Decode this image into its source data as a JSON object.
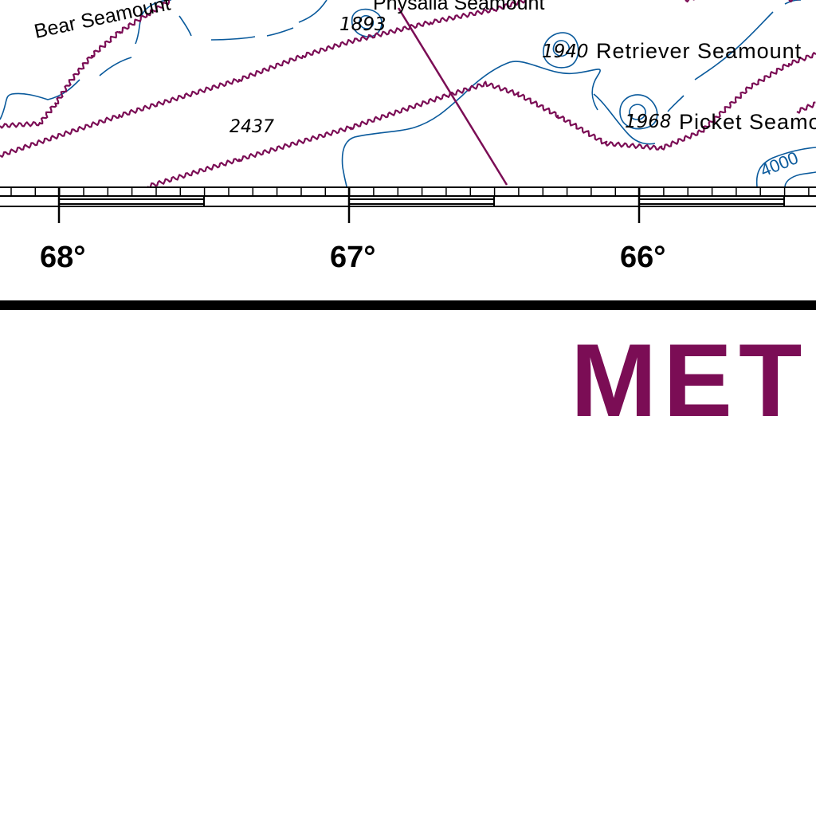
{
  "colors": {
    "contour": "#0a5a9c",
    "boundary": "#7b0d55",
    "title": "#7b0d55",
    "ink": "#000000"
  },
  "features": {
    "bear_seamount": "Bear Seamount",
    "physalia_seamount": "Physalia Seamount",
    "retriever_seamount": "Retriever Seamount",
    "picket_seamount": "Picket Seamount"
  },
  "soundings": {
    "s1893": "1893",
    "s1940": "1940",
    "s1968": "1968",
    "s2437": "2437"
  },
  "contour_labels": {
    "c4000": "4000"
  },
  "longitudes": {
    "l68": "68°",
    "l67": "67°",
    "l66": "66°"
  },
  "title": {
    "text": "MET"
  }
}
